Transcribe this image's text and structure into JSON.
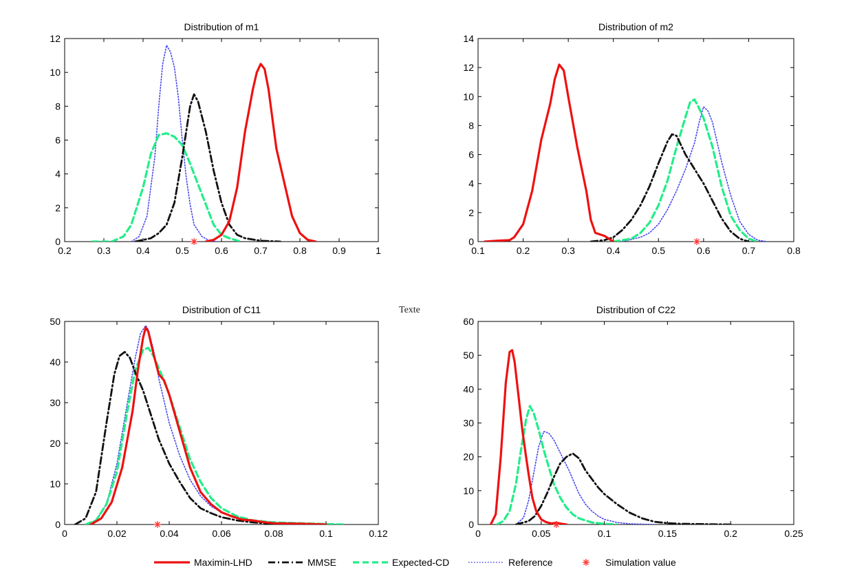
{
  "stray_text": "Texte",
  "styles": {
    "Maximin-LHD": {
      "color": "#ee1111",
      "dash": "",
      "width": 3.2
    },
    "MMSE": {
      "color": "#111111",
      "dash": "10,4,2,4",
      "width": 2.8
    },
    "Expected-CD": {
      "color": "#22ee88",
      "dash": "9,5",
      "width": 3.2
    },
    "Reference": {
      "color": "#4444ee",
      "dash": "1.5,2.5",
      "width": 1.6
    },
    "marker": "#ff3333"
  },
  "legend": {
    "placement": "bottom-center",
    "entries": [
      "Maximin-LHD",
      "MMSE",
      "Expected-CD",
      "Reference",
      "Simulation value"
    ]
  },
  "chart_data": [
    {
      "type": "line",
      "title": "Distribution of m1",
      "xlim": [
        0.2,
        1.0
      ],
      "ylim": [
        0,
        12
      ],
      "xticks": [
        0.2,
        0.3,
        0.4,
        0.5,
        0.6,
        0.7,
        0.8,
        0.9,
        1.0
      ],
      "xtick_labels": [
        "0.2",
        "0.3",
        "0.4",
        "0.5",
        "0.6",
        "0.7",
        "0.8",
        "0.9",
        "1"
      ],
      "yticks": [
        0,
        2,
        4,
        6,
        8,
        10,
        12
      ],
      "ytick_labels": [
        "0",
        "2",
        "4",
        "6",
        "8",
        "10",
        "12"
      ],
      "simulation_value": 0.53,
      "series": [
        {
          "name": "Maximin-LHD",
          "x": [
            0.56,
            0.58,
            0.6,
            0.62,
            0.64,
            0.66,
            0.68,
            0.69,
            0.7,
            0.71,
            0.72,
            0.74,
            0.76,
            0.78,
            0.8,
            0.82,
            0.84
          ],
          "y": [
            0.0,
            0.1,
            0.4,
            1.2,
            3.2,
            6.5,
            9.0,
            10.0,
            10.5,
            10.2,
            9.0,
            5.5,
            3.5,
            1.5,
            0.5,
            0.1,
            0.0
          ]
        },
        {
          "name": "MMSE",
          "x": [
            0.38,
            0.42,
            0.44,
            0.46,
            0.48,
            0.5,
            0.52,
            0.53,
            0.54,
            0.56,
            0.58,
            0.6,
            0.62,
            0.64,
            0.66,
            0.7,
            0.75
          ],
          "y": [
            0.0,
            0.2,
            0.5,
            1.0,
            2.3,
            5.0,
            8.0,
            8.7,
            8.3,
            6.5,
            4.2,
            2.3,
            1.0,
            0.4,
            0.2,
            0.05,
            0.0
          ]
        },
        {
          "name": "Expected-CD",
          "x": [
            0.27,
            0.32,
            0.35,
            0.37,
            0.4,
            0.42,
            0.44,
            0.46,
            0.48,
            0.5,
            0.52,
            0.55,
            0.58,
            0.6,
            0.62,
            0.65
          ],
          "y": [
            0.0,
            0.0,
            0.3,
            1.0,
            3.2,
            5.2,
            6.3,
            6.4,
            6.2,
            5.7,
            4.6,
            2.8,
            1.0,
            0.4,
            0.2,
            0.0
          ]
        },
        {
          "name": "Reference",
          "x": [
            0.37,
            0.39,
            0.41,
            0.43,
            0.44,
            0.45,
            0.46,
            0.47,
            0.48,
            0.49,
            0.5,
            0.51,
            0.52,
            0.53,
            0.55,
            0.57,
            0.59
          ],
          "y": [
            0.0,
            0.3,
            1.5,
            5.0,
            8.0,
            10.5,
            11.6,
            11.2,
            10.3,
            8.5,
            6.0,
            3.8,
            2.2,
            1.0,
            0.3,
            0.05,
            0.0
          ]
        }
      ]
    },
    {
      "type": "line",
      "title": "Distribution of m2",
      "xlim": [
        0.1,
        0.8
      ],
      "ylim": [
        0,
        14
      ],
      "xticks": [
        0.1,
        0.2,
        0.3,
        0.4,
        0.5,
        0.6,
        0.7,
        0.8
      ],
      "xtick_labels": [
        "0.1",
        "0.2",
        "0.3",
        "0.4",
        "0.5",
        "0.6",
        "0.7",
        "0.8"
      ],
      "yticks": [
        0,
        2,
        4,
        6,
        8,
        10,
        12,
        14
      ],
      "ytick_labels": [
        "0",
        "2",
        "4",
        "6",
        "8",
        "10",
        "12",
        "14"
      ],
      "simulation_value": 0.585,
      "series": [
        {
          "name": "Maximin-LHD",
          "x": [
            0.115,
            0.14,
            0.17,
            0.18,
            0.2,
            0.22,
            0.24,
            0.26,
            0.27,
            0.28,
            0.29,
            0.3,
            0.32,
            0.34,
            0.35,
            0.36,
            0.38,
            0.4
          ],
          "y": [
            0.0,
            0.05,
            0.1,
            0.3,
            1.2,
            3.5,
            7.0,
            9.5,
            11.2,
            12.2,
            11.8,
            10.0,
            6.5,
            3.5,
            1.5,
            0.6,
            0.4,
            0.0
          ]
        },
        {
          "name": "MMSE",
          "x": [
            0.35,
            0.38,
            0.4,
            0.42,
            0.44,
            0.46,
            0.48,
            0.5,
            0.52,
            0.53,
            0.54,
            0.56,
            0.58,
            0.6,
            0.62,
            0.64,
            0.66,
            0.68,
            0.7
          ],
          "y": [
            0.0,
            0.1,
            0.3,
            0.8,
            1.5,
            2.5,
            3.8,
            5.4,
            6.9,
            7.4,
            7.3,
            6.0,
            5.0,
            4.0,
            2.8,
            1.6,
            0.7,
            0.2,
            0.0
          ]
        },
        {
          "name": "Expected-CD",
          "x": [
            0.4,
            0.44,
            0.46,
            0.48,
            0.5,
            0.52,
            0.54,
            0.56,
            0.57,
            0.58,
            0.59,
            0.6,
            0.62,
            0.64,
            0.66,
            0.68,
            0.7,
            0.72
          ],
          "y": [
            0.0,
            0.2,
            0.6,
            1.3,
            2.5,
            4.2,
            6.5,
            8.6,
            9.6,
            9.8,
            9.2,
            8.5,
            6.5,
            3.8,
            1.8,
            0.8,
            0.2,
            0.0
          ]
        },
        {
          "name": "Reference",
          "x": [
            0.42,
            0.46,
            0.48,
            0.5,
            0.52,
            0.54,
            0.56,
            0.58,
            0.59,
            0.6,
            0.61,
            0.62,
            0.64,
            0.66,
            0.68,
            0.7,
            0.72,
            0.74
          ],
          "y": [
            0.0,
            0.3,
            0.6,
            1.2,
            2.2,
            3.5,
            5.0,
            6.8,
            8.2,
            9.3,
            9.0,
            8.2,
            5.5,
            3.2,
            1.4,
            0.5,
            0.1,
            0.0
          ]
        }
      ]
    },
    {
      "type": "line",
      "title": "Distribution of C11",
      "xlim": [
        0,
        0.12
      ],
      "ylim": [
        0,
        50
      ],
      "xticks": [
        0,
        0.02,
        0.04,
        0.06,
        0.08,
        0.1,
        0.12
      ],
      "xtick_labels": [
        "0",
        "0.02",
        "0.04",
        "0.06",
        "0.08",
        "0.1",
        "0.12"
      ],
      "yticks": [
        0,
        10,
        20,
        30,
        40,
        50
      ],
      "ytick_labels": [
        "0",
        "10",
        "20",
        "30",
        "40",
        "50"
      ],
      "simulation_value": 0.0355,
      "series": [
        {
          "name": "Maximin-LHD",
          "x": [
            0.01,
            0.014,
            0.018,
            0.022,
            0.026,
            0.028,
            0.03,
            0.031,
            0.032,
            0.034,
            0.036,
            0.038,
            0.04,
            0.044,
            0.048,
            0.052,
            0.056,
            0.06,
            0.064,
            0.068,
            0.072,
            0.076,
            0.08,
            0.09,
            0.1
          ],
          "y": [
            0.0,
            1.5,
            5.5,
            14.0,
            28.0,
            38.0,
            46.0,
            48.5,
            47.5,
            42.0,
            37.0,
            35.5,
            32.0,
            23.0,
            14.0,
            8.0,
            5.0,
            3.0,
            2.0,
            1.2,
            1.0,
            0.6,
            0.3,
            0.2,
            0.0
          ]
        },
        {
          "name": "MMSE",
          "x": [
            0.004,
            0.008,
            0.012,
            0.016,
            0.019,
            0.021,
            0.023,
            0.025,
            0.027,
            0.03,
            0.033,
            0.036,
            0.04,
            0.044,
            0.048,
            0.052,
            0.056,
            0.06,
            0.066,
            0.072,
            0.08,
            0.09
          ],
          "y": [
            0.0,
            1.5,
            8.0,
            25.0,
            37.0,
            41.5,
            42.5,
            41.0,
            37.5,
            33.0,
            27.0,
            21.0,
            15.0,
            10.5,
            6.5,
            4.0,
            2.8,
            1.8,
            1.0,
            0.5,
            0.2,
            0.0
          ]
        },
        {
          "name": "Expected-CD",
          "x": [
            0.008,
            0.012,
            0.016,
            0.02,
            0.024,
            0.027,
            0.03,
            0.032,
            0.034,
            0.037,
            0.04,
            0.044,
            0.048,
            0.052,
            0.056,
            0.06,
            0.066,
            0.072,
            0.08,
            0.09,
            0.1,
            0.107
          ],
          "y": [
            0.0,
            1.0,
            5.0,
            13.0,
            28.0,
            38.0,
            43.0,
            43.5,
            41.5,
            37.0,
            32.0,
            24.0,
            16.0,
            10.5,
            6.5,
            4.0,
            2.0,
            1.0,
            0.5,
            0.3,
            0.1,
            0.0
          ]
        },
        {
          "name": "Reference",
          "x": [
            0.008,
            0.012,
            0.016,
            0.02,
            0.024,
            0.027,
            0.029,
            0.031,
            0.032,
            0.034,
            0.036,
            0.04,
            0.044,
            0.048,
            0.052,
            0.056,
            0.06,
            0.066,
            0.072,
            0.08,
            0.09
          ],
          "y": [
            0.0,
            1.0,
            5.0,
            15.0,
            30.0,
            41.0,
            47.0,
            49.0,
            48.0,
            43.0,
            36.0,
            25.0,
            17.0,
            11.0,
            7.0,
            4.5,
            3.0,
            1.5,
            0.8,
            0.3,
            0.0
          ]
        }
      ]
    },
    {
      "type": "line",
      "title": "Distribution of C22",
      "xlim": [
        0,
        0.25
      ],
      "ylim": [
        0,
        60
      ],
      "xticks": [
        0,
        0.05,
        0.1,
        0.15,
        0.2,
        0.25
      ],
      "xtick_labels": [
        "0",
        "0.05",
        "0.1",
        "0.15",
        "0.2",
        "0.25"
      ],
      "yticks": [
        0,
        10,
        20,
        30,
        40,
        50,
        60
      ],
      "ytick_labels": [
        "0",
        "10",
        "20",
        "30",
        "40",
        "50",
        "60"
      ],
      "simulation_value": 0.062,
      "series": [
        {
          "name": "Maximin-LHD",
          "x": [
            0.01,
            0.014,
            0.018,
            0.022,
            0.025,
            0.027,
            0.029,
            0.032,
            0.035,
            0.038,
            0.04,
            0.043,
            0.046,
            0.05,
            0.054,
            0.058,
            0.062,
            0.066,
            0.07
          ],
          "y": [
            0.0,
            3.0,
            20.0,
            42.0,
            51.0,
            51.5,
            48.0,
            38.0,
            28.0,
            20.0,
            15.0,
            8.0,
            4.0,
            1.5,
            0.7,
            0.3,
            0.5,
            0.2,
            0.0
          ]
        },
        {
          "name": "MMSE",
          "x": [
            0.03,
            0.04,
            0.045,
            0.05,
            0.055,
            0.06,
            0.065,
            0.07,
            0.075,
            0.08,
            0.085,
            0.09,
            0.095,
            0.1,
            0.11,
            0.12,
            0.13,
            0.14,
            0.15,
            0.16,
            0.18,
            0.2
          ],
          "y": [
            0.0,
            1.0,
            2.5,
            5.5,
            9.5,
            14.0,
            18.0,
            20.0,
            21.0,
            19.5,
            16.0,
            13.5,
            11.0,
            9.0,
            6.0,
            3.5,
            1.8,
            0.8,
            0.4,
            0.2,
            0.1,
            0.0
          ]
        },
        {
          "name": "Expected-CD",
          "x": [
            0.015,
            0.02,
            0.025,
            0.03,
            0.034,
            0.038,
            0.041,
            0.044,
            0.048,
            0.052,
            0.056,
            0.06,
            0.065,
            0.07,
            0.075,
            0.08,
            0.09,
            0.1,
            0.11
          ],
          "y": [
            0.0,
            1.0,
            4.0,
            12.0,
            22.0,
            31.0,
            35.0,
            33.0,
            28.0,
            22.0,
            17.0,
            12.0,
            8.0,
            5.0,
            3.0,
            1.8,
            0.6,
            0.2,
            0.0
          ]
        },
        {
          "name": "Reference",
          "x": [
            0.03,
            0.036,
            0.04,
            0.044,
            0.048,
            0.052,
            0.056,
            0.06,
            0.064,
            0.068,
            0.072,
            0.076,
            0.08,
            0.085,
            0.09,
            0.095,
            0.1,
            0.11,
            0.12,
            0.13,
            0.14
          ],
          "y": [
            0.0,
            2.0,
            7.0,
            15.0,
            23.0,
            27.5,
            27.0,
            25.0,
            22.0,
            19.0,
            16.0,
            12.5,
            9.0,
            6.0,
            4.0,
            2.5,
            1.5,
            0.6,
            0.2,
            0.1,
            0.0
          ]
        }
      ]
    }
  ]
}
